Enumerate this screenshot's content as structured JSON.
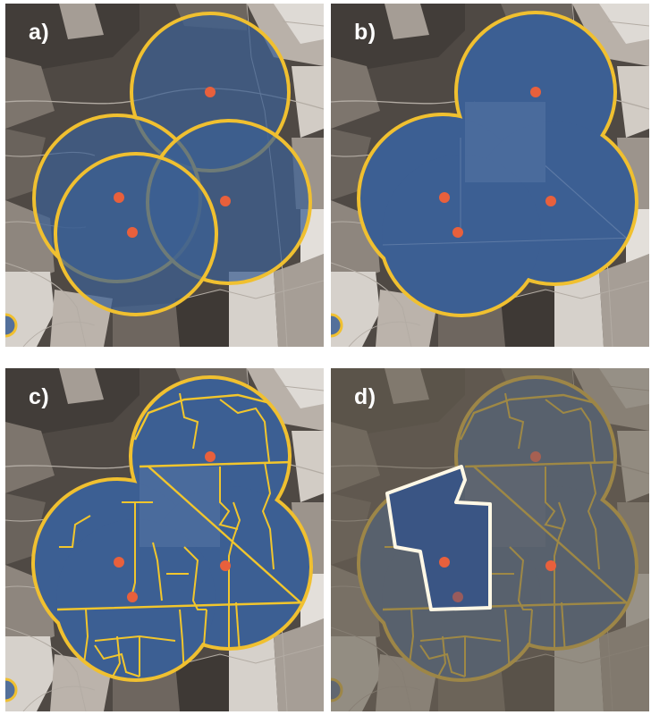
{
  "panels": [
    {
      "id": "a",
      "label": "a)",
      "mode": "overlapping-buffers"
    },
    {
      "id": "b",
      "label": "b)",
      "mode": "dissolved-buffer"
    },
    {
      "id": "c",
      "label": "c)",
      "mode": "buffer-intersected-with-zones"
    },
    {
      "id": "d",
      "label": "d)",
      "mode": "selected-zone-highlight"
    }
  ],
  "colors": {
    "buffer_fill": "#3c5f93",
    "buffer_outline": "#f0c030",
    "zone_line": "#f2c62c",
    "point": "#e8603c",
    "selection_outline": "#fff8e6",
    "selection_fill": "#3a5584",
    "dimmed_overlay": "#6a6356"
  }
}
